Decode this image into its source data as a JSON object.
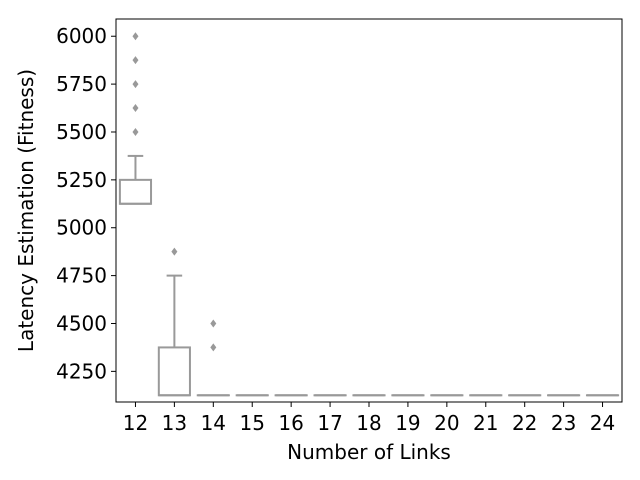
{
  "chart_data": {
    "type": "box",
    "xlabel": "Number of Links",
    "ylabel": "Latency Estimation (Fitness)",
    "categories": [
      "12",
      "13",
      "14",
      "15",
      "16",
      "17",
      "18",
      "19",
      "20",
      "21",
      "22",
      "23",
      "24"
    ],
    "y_ticks": [
      4250,
      4500,
      4750,
      5000,
      5250,
      5500,
      5750,
      6000
    ],
    "ylim": [
      4090,
      6090
    ],
    "grid": false,
    "colors": {
      "box_line": "#999999",
      "outlier": "#999999",
      "axis": "#000000"
    },
    "boxes": [
      {
        "category": "12",
        "whisker_low": 5125,
        "q1": 5125,
        "median": 5125,
        "q3": 5250,
        "whisker_high": 5375,
        "outliers": [
          5500,
          5625,
          5750,
          5875,
          6000
        ]
      },
      {
        "category": "13",
        "whisker_low": 4125,
        "q1": 4125,
        "median": 4125,
        "q3": 4375,
        "whisker_high": 4750,
        "outliers": [
          4875
        ]
      },
      {
        "category": "14",
        "whisker_low": 4125,
        "q1": 4125,
        "median": 4125,
        "q3": 4125,
        "whisker_high": 4125,
        "outliers": [
          4375,
          4500
        ]
      },
      {
        "category": "15",
        "whisker_low": 4125,
        "q1": 4125,
        "median": 4125,
        "q3": 4125,
        "whisker_high": 4125,
        "outliers": []
      },
      {
        "category": "16",
        "whisker_low": 4125,
        "q1": 4125,
        "median": 4125,
        "q3": 4125,
        "whisker_high": 4125,
        "outliers": []
      },
      {
        "category": "17",
        "whisker_low": 4125,
        "q1": 4125,
        "median": 4125,
        "q3": 4125,
        "whisker_high": 4125,
        "outliers": []
      },
      {
        "category": "18",
        "whisker_low": 4125,
        "q1": 4125,
        "median": 4125,
        "q3": 4125,
        "whisker_high": 4125,
        "outliers": []
      },
      {
        "category": "19",
        "whisker_low": 4125,
        "q1": 4125,
        "median": 4125,
        "q3": 4125,
        "whisker_high": 4125,
        "outliers": []
      },
      {
        "category": "20",
        "whisker_low": 4125,
        "q1": 4125,
        "median": 4125,
        "q3": 4125,
        "whisker_high": 4125,
        "outliers": []
      },
      {
        "category": "21",
        "whisker_low": 4125,
        "q1": 4125,
        "median": 4125,
        "q3": 4125,
        "whisker_high": 4125,
        "outliers": []
      },
      {
        "category": "22",
        "whisker_low": 4125,
        "q1": 4125,
        "median": 4125,
        "q3": 4125,
        "whisker_high": 4125,
        "outliers": []
      },
      {
        "category": "23",
        "whisker_low": 4125,
        "q1": 4125,
        "median": 4125,
        "q3": 4125,
        "whisker_high": 4125,
        "outliers": []
      },
      {
        "category": "24",
        "whisker_low": 4125,
        "q1": 4125,
        "median": 4125,
        "q3": 4125,
        "whisker_high": 4125,
        "outliers": []
      }
    ]
  }
}
